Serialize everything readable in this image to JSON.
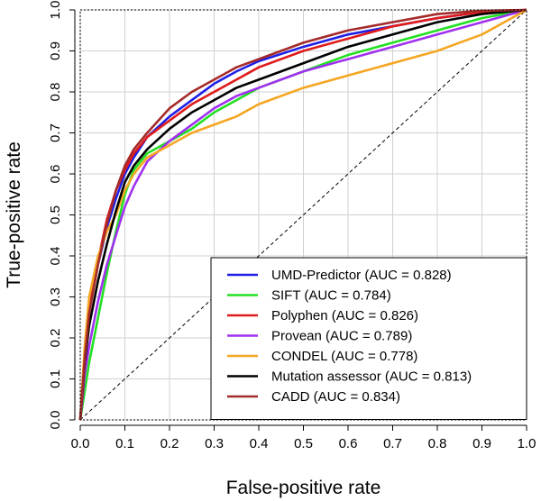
{
  "chart_data": {
    "type": "line",
    "title": "",
    "xlabel": "False-positive rate",
    "ylabel": "True-positive rate",
    "xlim": [
      0,
      1
    ],
    "ylim": [
      0,
      1
    ],
    "xticks": [
      "0.0",
      "0.1",
      "0.2",
      "0.3",
      "0.4",
      "0.5",
      "0.6",
      "0.7",
      "0.8",
      "0.9",
      "1.0"
    ],
    "yticks": [
      "0.0",
      "0.1",
      "0.2",
      "0.3",
      "0.4",
      "0.5",
      "0.6",
      "0.7",
      "0.8",
      "0.9",
      "1.0"
    ],
    "grid": true,
    "legend_position": "bottom-right",
    "reference_line": {
      "x": [
        0,
        1
      ],
      "y": [
        0,
        1
      ],
      "style": "dashed",
      "color": "#000000"
    },
    "series": [
      {
        "name": "UMD-Predictor (AUC = 0.828)",
        "color": "#1f1fe6",
        "x": [
          0,
          0.01,
          0.02,
          0.04,
          0.06,
          0.08,
          0.1,
          0.12,
          0.15,
          0.2,
          0.25,
          0.3,
          0.35,
          0.4,
          0.5,
          0.6,
          0.7,
          0.8,
          0.9,
          1.0
        ],
        "y": [
          0,
          0.17,
          0.27,
          0.38,
          0.47,
          0.54,
          0.6,
          0.64,
          0.69,
          0.74,
          0.78,
          0.82,
          0.85,
          0.875,
          0.91,
          0.94,
          0.96,
          0.98,
          0.995,
          1.0
        ]
      },
      {
        "name": "SIFT (AUC = 0.784)",
        "color": "#22e022",
        "x": [
          0,
          0.01,
          0.02,
          0.04,
          0.06,
          0.08,
          0.1,
          0.12,
          0.15,
          0.2,
          0.25,
          0.3,
          0.35,
          0.4,
          0.5,
          0.6,
          0.7,
          0.8,
          0.9,
          1.0
        ],
        "y": [
          0,
          0.07,
          0.14,
          0.25,
          0.36,
          0.46,
          0.55,
          0.61,
          0.65,
          0.68,
          0.71,
          0.75,
          0.78,
          0.81,
          0.85,
          0.89,
          0.92,
          0.95,
          0.98,
          1.0
        ]
      },
      {
        "name": "Polyphen (AUC = 0.826)",
        "color": "#e01a1a",
        "x": [
          0,
          0.01,
          0.02,
          0.04,
          0.06,
          0.08,
          0.1,
          0.12,
          0.15,
          0.2,
          0.25,
          0.3,
          0.35,
          0.4,
          0.5,
          0.6,
          0.7,
          0.8,
          0.9,
          1.0
        ],
        "y": [
          0,
          0.15,
          0.27,
          0.39,
          0.49,
          0.56,
          0.61,
          0.65,
          0.69,
          0.73,
          0.77,
          0.8,
          0.83,
          0.86,
          0.9,
          0.93,
          0.96,
          0.98,
          0.995,
          1.0
        ]
      },
      {
        "name": "Provean (AUC = 0.789)",
        "color": "#a030f0",
        "x": [
          0,
          0.01,
          0.02,
          0.04,
          0.06,
          0.08,
          0.1,
          0.12,
          0.15,
          0.2,
          0.25,
          0.3,
          0.35,
          0.4,
          0.5,
          0.6,
          0.7,
          0.8,
          0.9,
          1.0
        ],
        "y": [
          0,
          0.11,
          0.18,
          0.29,
          0.38,
          0.45,
          0.52,
          0.57,
          0.63,
          0.68,
          0.72,
          0.76,
          0.79,
          0.81,
          0.85,
          0.88,
          0.91,
          0.94,
          0.97,
          1.0
        ]
      },
      {
        "name": "CONDEL (AUC = 0.778)",
        "color": "#f5a623",
        "x": [
          0,
          0.01,
          0.02,
          0.04,
          0.06,
          0.08,
          0.1,
          0.12,
          0.15,
          0.2,
          0.25,
          0.3,
          0.35,
          0.4,
          0.5,
          0.6,
          0.7,
          0.8,
          0.9,
          1.0
        ],
        "y": [
          0,
          0.18,
          0.3,
          0.4,
          0.46,
          0.5,
          0.56,
          0.6,
          0.64,
          0.67,
          0.7,
          0.72,
          0.74,
          0.77,
          0.81,
          0.84,
          0.87,
          0.9,
          0.94,
          1.0
        ]
      },
      {
        "name": "Mutation assessor (AUC = 0.813)",
        "color": "#000000",
        "x": [
          0,
          0.01,
          0.02,
          0.04,
          0.06,
          0.08,
          0.1,
          0.12,
          0.15,
          0.2,
          0.25,
          0.3,
          0.35,
          0.4,
          0.5,
          0.6,
          0.7,
          0.8,
          0.9,
          1.0
        ],
        "y": [
          0,
          0.14,
          0.23,
          0.34,
          0.43,
          0.51,
          0.58,
          0.62,
          0.66,
          0.71,
          0.75,
          0.78,
          0.81,
          0.83,
          0.87,
          0.91,
          0.94,
          0.97,
          0.99,
          1.0
        ]
      },
      {
        "name": "CADD (AUC = 0.834)",
        "color": "#a52a2a",
        "x": [
          0,
          0.01,
          0.02,
          0.04,
          0.06,
          0.08,
          0.1,
          0.12,
          0.15,
          0.2,
          0.25,
          0.3,
          0.35,
          0.4,
          0.5,
          0.6,
          0.7,
          0.8,
          0.9,
          1.0
        ],
        "y": [
          0,
          0.15,
          0.26,
          0.38,
          0.48,
          0.56,
          0.62,
          0.66,
          0.7,
          0.76,
          0.8,
          0.83,
          0.86,
          0.88,
          0.92,
          0.95,
          0.97,
          0.99,
          0.998,
          1.0
        ]
      }
    ]
  }
}
